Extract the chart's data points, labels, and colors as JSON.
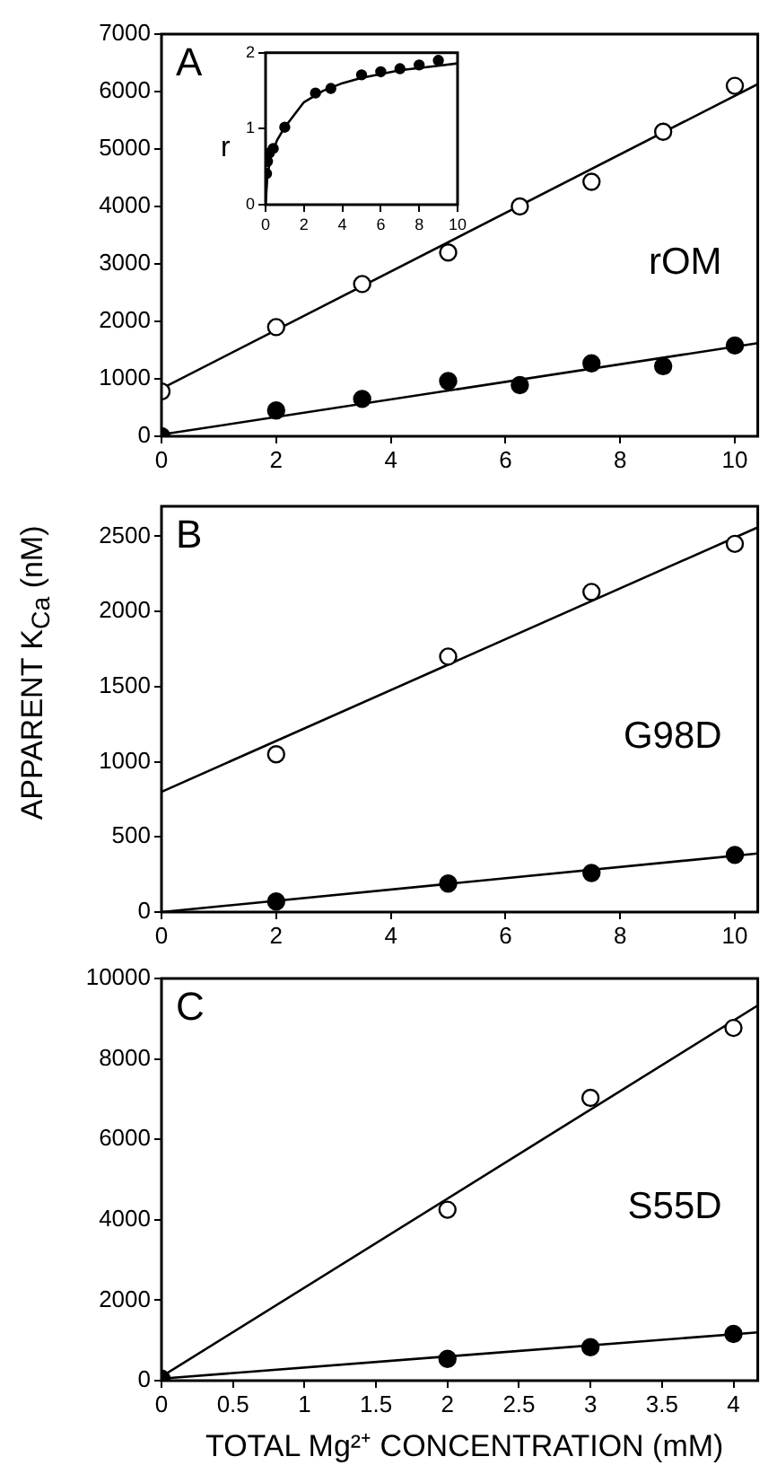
{
  "chart_data": [
    {
      "type": "scatter",
      "title": "A",
      "annotations": [
        "rOM"
      ],
      "xlim": [
        0,
        10.4
      ],
      "ylim": [
        0,
        7000
      ],
      "xticks": [
        0,
        2,
        4,
        6,
        8,
        10
      ],
      "yticks": [
        0,
        1000,
        2000,
        3000,
        4000,
        5000,
        6000,
        7000
      ],
      "grid": false,
      "legend": false,
      "series": [
        {
          "type": "scatter",
          "marker": "circle",
          "color": "#ffffff",
          "x": [
            0,
            2,
            3.5,
            5,
            6.25,
            7.5,
            8.75,
            10
          ],
          "values": [
            780,
            1900,
            2650,
            3200,
            4000,
            4430,
            5300,
            6100
          ]
        },
        {
          "type": "scatter",
          "marker": "circle",
          "color": "#000000",
          "x": [
            0,
            2,
            3.5,
            5,
            6.25,
            7.5,
            8.75,
            10
          ],
          "values": [
            0,
            450,
            650,
            960,
            890,
            1270,
            1220,
            1580
          ]
        },
        {
          "type": "line",
          "marker": "none",
          "color": "#000000",
          "x": [
            0,
            10.4
          ],
          "values": [
            830,
            6130
          ]
        },
        {
          "type": "line",
          "marker": "none",
          "color": "#000000",
          "x": [
            0,
            10.4
          ],
          "values": [
            30,
            1620
          ]
        }
      ]
    },
    {
      "type": "scatter",
      "ylabel": "r",
      "xlim": [
        0,
        10
      ],
      "ylim": [
        0,
        2
      ],
      "xticks": [
        0,
        2,
        4,
        6,
        8,
        10
      ],
      "yticks": [
        0,
        1,
        2
      ],
      "grid": false,
      "legend": false,
      "series": [
        {
          "type": "scatter",
          "marker": "circle",
          "color": "#000000",
          "x": [
            0.05,
            0.1,
            0.2,
            0.4,
            1,
            2.6,
            3.4,
            5,
            6,
            7,
            8,
            9
          ],
          "values": [
            0.41,
            0.57,
            0.68,
            0.74,
            1.02,
            1.47,
            1.53,
            1.71,
            1.75,
            1.79,
            1.84,
            1.9
          ]
        },
        {
          "type": "line",
          "marker": "none",
          "color": "#000000",
          "x": [
            0,
            0.1,
            0.3,
            0.6,
            1,
            2,
            3,
            4,
            5,
            6,
            7,
            8,
            9,
            10
          ],
          "values": [
            0,
            0.4,
            0.65,
            0.85,
            1.02,
            1.35,
            1.5,
            1.6,
            1.67,
            1.72,
            1.77,
            1.8,
            1.83,
            1.86
          ]
        }
      ]
    },
    {
      "type": "scatter",
      "title": "B",
      "annotations": [
        "G98D"
      ],
      "ylabel": "APPARENT K$_{Ca}$ (nM)",
      "xlim": [
        0,
        10.4
      ],
      "ylim": [
        0,
        2700
      ],
      "xticks": [
        0,
        2,
        4,
        6,
        8,
        10
      ],
      "yticks": [
        0,
        500,
        1000,
        1500,
        2000,
        2500
      ],
      "grid": false,
      "legend": false,
      "series": [
        {
          "type": "scatter",
          "marker": "circle",
          "color": "#ffffff",
          "x": [
            2,
            5,
            7.5,
            10
          ],
          "values": [
            1050,
            1700,
            2130,
            2450
          ]
        },
        {
          "type": "scatter",
          "marker": "circle",
          "color": "#000000",
          "x": [
            2,
            5,
            7.5,
            10
          ],
          "values": [
            70,
            190,
            260,
            380
          ]
        },
        {
          "type": "line",
          "marker": "none",
          "color": "#000000",
          "x": [
            0,
            10.4
          ],
          "values": [
            800,
            2560
          ]
        },
        {
          "type": "line",
          "marker": "none",
          "color": "#000000",
          "x": [
            0,
            10.4
          ],
          "values": [
            0,
            390
          ]
        }
      ]
    },
    {
      "type": "scatter",
      "title": "C",
      "annotations": [
        "S55D"
      ],
      "xlabel": "TOTAL Mg²⁺ CONCENTRATION  (mM)",
      "xlim": [
        0,
        4.17
      ],
      "ylim": [
        0,
        10000
      ],
      "xticks": [
        0,
        0.5,
        1,
        1.5,
        2,
        2.5,
        3,
        3.5,
        4
      ],
      "yticks": [
        0,
        2000,
        4000,
        6000,
        8000,
        10000
      ],
      "grid": false,
      "legend": false,
      "series": [
        {
          "type": "scatter",
          "marker": "circle",
          "color": "#ffffff",
          "x": [
            2,
            3,
            4
          ],
          "values": [
            4250,
            7030,
            8770
          ]
        },
        {
          "type": "scatter",
          "marker": "circle",
          "color": "#000000",
          "x": [
            0,
            2,
            3,
            4
          ],
          "values": [
            50,
            540,
            830,
            1160
          ]
        },
        {
          "type": "line",
          "marker": "none",
          "color": "#000000",
          "x": [
            0,
            4.17
          ],
          "values": [
            100,
            9330
          ]
        },
        {
          "type": "line",
          "marker": "none",
          "color": "#000000",
          "x": [
            0,
            4.17
          ],
          "values": [
            50,
            1200
          ]
        }
      ]
    }
  ]
}
